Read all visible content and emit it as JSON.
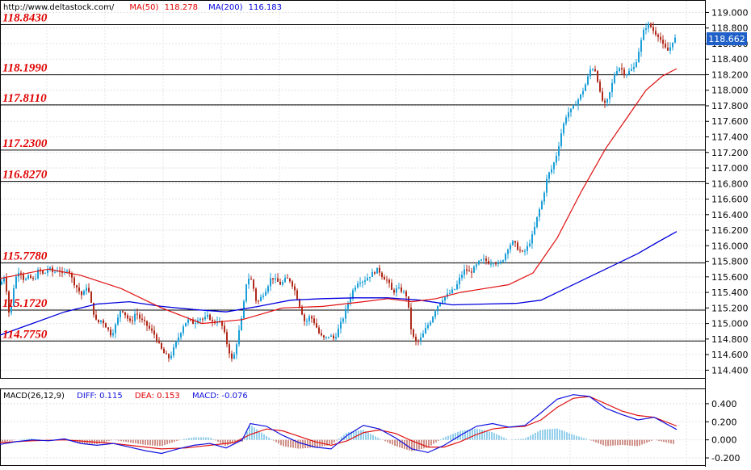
{
  "chart_data": [
    {
      "type": "candlestick",
      "panel": "price",
      "header": {
        "source": "http://www.deltastock.com/",
        "ma50_label": "MA(50)",
        "ma50_value": "118.278",
        "ma200_label": "MA(200)",
        "ma200_value": "116.183"
      },
      "current_price": "118.662",
      "ylim": [
        114.3,
        119.15
      ],
      "y_ticks": [
        "119.000",
        "118.800",
        "118.600",
        "118.400",
        "118.200",
        "118.000",
        "117.800",
        "117.600",
        "117.400",
        "117.200",
        "117.000",
        "116.800",
        "116.600",
        "116.400",
        "116.200",
        "116.000",
        "115.800",
        "115.600",
        "115.400",
        "115.200",
        "115.000",
        "114.800",
        "114.600",
        "114.400"
      ],
      "levels": [
        {
          "label": "118.8430",
          "value": 118.843
        },
        {
          "label": "118.1990",
          "value": 118.199
        },
        {
          "label": "117.8110",
          "value": 117.811
        },
        {
          "label": "117.2300",
          "value": 117.23
        },
        {
          "label": "116.8270",
          "value": 116.827
        },
        {
          "label": "115.7780",
          "value": 115.778
        },
        {
          "label": "115.1720",
          "value": 115.172
        },
        {
          "label": "114.7750",
          "value": 114.775
        }
      ],
      "close_path": [
        [
          0,
          115.5
        ],
        [
          6,
          115.62
        ],
        [
          12,
          115.05
        ],
        [
          18,
          115.55
        ],
        [
          24,
          115.7
        ],
        [
          30,
          115.55
        ],
        [
          36,
          115.6
        ],
        [
          42,
          115.55
        ],
        [
          48,
          115.7
        ],
        [
          54,
          115.62
        ],
        [
          60,
          115.72
        ],
        [
          66,
          115.65
        ],
        [
          72,
          115.7
        ],
        [
          78,
          115.62
        ],
        [
          84,
          115.72
        ],
        [
          90,
          115.55
        ],
        [
          96,
          115.45
        ],
        [
          102,
          115.35
        ],
        [
          108,
          115.5
        ],
        [
          114,
          115.2
        ],
        [
          120,
          115.0
        ],
        [
          126,
          115.05
        ],
        [
          132,
          114.95
        ],
        [
          138,
          114.85
        ],
        [
          144,
          115.0
        ],
        [
          150,
          115.2
        ],
        [
          156,
          115.1
        ],
        [
          162,
          115.0
        ],
        [
          168,
          115.15
        ],
        [
          174,
          115.05
        ],
        [
          180,
          115.0
        ],
        [
          186,
          114.92
        ],
        [
          192,
          114.85
        ],
        [
          198,
          114.7
        ],
        [
          204,
          114.6
        ],
        [
          210,
          114.55
        ],
        [
          216,
          114.7
        ],
        [
          222,
          114.85
        ],
        [
          228,
          115.0
        ],
        [
          234,
          115.05
        ],
        [
          240,
          115.0
        ],
        [
          246,
          115.08
        ],
        [
          252,
          115.05
        ],
        [
          258,
          115.1
        ],
        [
          264,
          115.0
        ],
        [
          270,
          115.05
        ],
        [
          276,
          114.95
        ],
        [
          282,
          114.7
        ],
        [
          288,
          114.5
        ],
        [
          294,
          114.8
        ],
        [
          300,
          115.1
        ],
        [
          306,
          115.6
        ],
        [
          312,
          115.55
        ],
        [
          318,
          115.25
        ],
        [
          324,
          115.35
        ],
        [
          330,
          115.45
        ],
        [
          336,
          115.6
        ],
        [
          342,
          115.55
        ],
        [
          348,
          115.5
        ],
        [
          354,
          115.58
        ],
        [
          360,
          115.55
        ],
        [
          366,
          115.4
        ],
        [
          372,
          115.2
        ],
        [
          378,
          115.0
        ],
        [
          384,
          115.1
        ],
        [
          390,
          115.0
        ],
        [
          396,
          114.85
        ],
        [
          402,
          114.8
        ],
        [
          408,
          114.85
        ],
        [
          414,
          114.8
        ],
        [
          420,
          114.95
        ],
        [
          426,
          115.1
        ],
        [
          432,
          115.3
        ],
        [
          438,
          115.45
        ],
        [
          444,
          115.55
        ],
        [
          450,
          115.55
        ],
        [
          456,
          115.6
        ],
        [
          462,
          115.65
        ],
        [
          468,
          115.7
        ],
        [
          474,
          115.6
        ],
        [
          480,
          115.55
        ],
        [
          486,
          115.4
        ],
        [
          492,
          115.45
        ],
        [
          498,
          115.42
        ],
        [
          504,
          115.35
        ],
        [
          510,
          114.85
        ],
        [
          516,
          114.75
        ],
        [
          522,
          114.82
        ],
        [
          528,
          114.95
        ],
        [
          534,
          115.05
        ],
        [
          540,
          115.2
        ],
        [
          546,
          115.3
        ],
        [
          552,
          115.35
        ],
        [
          558,
          115.4
        ],
        [
          564,
          115.45
        ],
        [
          570,
          115.6
        ],
        [
          576,
          115.7
        ],
        [
          582,
          115.65
        ],
        [
          588,
          115.72
        ],
        [
          594,
          115.8
        ],
        [
          600,
          115.82
        ],
        [
          606,
          115.78
        ],
        [
          612,
          115.8
        ],
        [
          618,
          115.75
        ],
        [
          624,
          115.85
        ],
        [
          630,
          116.0
        ],
        [
          636,
          116.05
        ],
        [
          642,
          115.95
        ],
        [
          648,
          115.9
        ],
        [
          654,
          116.0
        ],
        [
          660,
          116.15
        ],
        [
          666,
          116.4
        ],
        [
          672,
          116.6
        ],
        [
          678,
          116.9
        ],
        [
          684,
          117.0
        ],
        [
          690,
          117.2
        ],
        [
          696,
          117.5
        ],
        [
          702,
          117.7
        ],
        [
          708,
          117.75
        ],
        [
          714,
          117.85
        ],
        [
          720,
          117.95
        ],
        [
          726,
          118.1
        ],
        [
          732,
          118.3
        ],
        [
          738,
          118.25
        ],
        [
          744,
          117.9
        ],
        [
          750,
          117.8
        ],
        [
          756,
          118.0
        ],
        [
          762,
          118.25
        ],
        [
          768,
          118.3
        ],
        [
          774,
          118.2
        ],
        [
          780,
          118.25
        ],
        [
          786,
          118.3
        ],
        [
          792,
          118.55
        ],
        [
          798,
          118.8
        ],
        [
          804,
          118.85
        ],
        [
          810,
          118.75
        ],
        [
          816,
          118.7
        ],
        [
          822,
          118.55
        ],
        [
          828,
          118.5
        ],
        [
          834,
          118.662
        ]
      ],
      "ma50_path": [
        [
          0,
          115.58
        ],
        [
          60,
          115.7
        ],
        [
          100,
          115.62
        ],
        [
          150,
          115.45
        ],
        [
          200,
          115.2
        ],
        [
          250,
          115.0
        ],
        [
          300,
          115.05
        ],
        [
          350,
          115.2
        ],
        [
          400,
          115.22
        ],
        [
          450,
          115.28
        ],
        [
          480,
          115.32
        ],
        [
          510,
          115.28
        ],
        [
          540,
          115.32
        ],
        [
          570,
          115.4
        ],
        [
          600,
          115.45
        ],
        [
          630,
          115.5
        ],
        [
          660,
          115.65
        ],
        [
          690,
          116.1
        ],
        [
          720,
          116.7
        ],
        [
          750,
          117.25
        ],
        [
          780,
          117.7
        ],
        [
          800,
          118.0
        ],
        [
          820,
          118.18
        ],
        [
          838,
          118.278
        ]
      ],
      "ma200_path": [
        [
          0,
          114.85
        ],
        [
          40,
          115.0
        ],
        [
          80,
          115.15
        ],
        [
          120,
          115.25
        ],
        [
          160,
          115.28
        ],
        [
          200,
          115.22
        ],
        [
          240,
          115.18
        ],
        [
          280,
          115.15
        ],
        [
          320,
          115.22
        ],
        [
          360,
          115.3
        ],
        [
          400,
          115.32
        ],
        [
          440,
          115.33
        ],
        [
          480,
          115.33
        ],
        [
          520,
          115.3
        ],
        [
          560,
          115.24
        ],
        [
          600,
          115.25
        ],
        [
          640,
          115.26
        ],
        [
          670,
          115.3
        ],
        [
          700,
          115.45
        ],
        [
          730,
          115.6
        ],
        [
          760,
          115.75
        ],
        [
          790,
          115.9
        ],
        [
          815,
          116.05
        ],
        [
          838,
          116.183
        ]
      ]
    },
    {
      "type": "macd",
      "panel": "indicator",
      "header": {
        "macd_label": "MACD(26,12,9)",
        "diff_label": "DIFF:",
        "diff_value": "0.115",
        "dea_label": "DEA:",
        "dea_value": "0.153",
        "macd_hist_label": "MACD:",
        "macd_hist_value": "-0.076"
      },
      "ylim": [
        -0.28,
        0.56
      ],
      "y_ticks": [
        "0.400",
        "0.200",
        "0.000",
        "-0.200"
      ],
      "diff_path": [
        [
          0,
          -0.05
        ],
        [
          20,
          -0.02
        ],
        [
          40,
          0.0
        ],
        [
          60,
          -0.01
        ],
        [
          80,
          0.01
        ],
        [
          100,
          -0.04
        ],
        [
          120,
          -0.06
        ],
        [
          140,
          -0.04
        ],
        [
          160,
          -0.08
        ],
        [
          180,
          -0.12
        ],
        [
          200,
          -0.15
        ],
        [
          220,
          -0.1
        ],
        [
          240,
          -0.06
        ],
        [
          260,
          -0.04
        ],
        [
          280,
          -0.09
        ],
        [
          300,
          0.0
        ],
        [
          310,
          0.18
        ],
        [
          330,
          0.15
        ],
        [
          350,
          0.05
        ],
        [
          370,
          -0.03
        ],
        [
          390,
          -0.08
        ],
        [
          410,
          -0.1
        ],
        [
          430,
          0.05
        ],
        [
          450,
          0.16
        ],
        [
          470,
          0.12
        ],
        [
          490,
          0.02
        ],
        [
          510,
          -0.1
        ],
        [
          530,
          -0.14
        ],
        [
          550,
          -0.06
        ],
        [
          570,
          0.05
        ],
        [
          590,
          0.15
        ],
        [
          610,
          0.18
        ],
        [
          630,
          0.14
        ],
        [
          650,
          0.16
        ],
        [
          670,
          0.3
        ],
        [
          690,
          0.45
        ],
        [
          710,
          0.5
        ],
        [
          730,
          0.48
        ],
        [
          750,
          0.35
        ],
        [
          770,
          0.28
        ],
        [
          790,
          0.22
        ],
        [
          810,
          0.25
        ],
        [
          838,
          0.115
        ]
      ],
      "dea_path": [
        [
          0,
          -0.03
        ],
        [
          40,
          -0.01
        ],
        [
          80,
          0.0
        ],
        [
          110,
          -0.02
        ],
        [
          140,
          -0.04
        ],
        [
          170,
          -0.07
        ],
        [
          200,
          -0.1
        ],
        [
          230,
          -0.09
        ],
        [
          260,
          -0.06
        ],
        [
          290,
          -0.03
        ],
        [
          310,
          0.06
        ],
        [
          330,
          0.12
        ],
        [
          350,
          0.1
        ],
        [
          370,
          0.04
        ],
        [
          390,
          -0.02
        ],
        [
          410,
          -0.06
        ],
        [
          430,
          -0.01
        ],
        [
          450,
          0.08
        ],
        [
          470,
          0.11
        ],
        [
          490,
          0.07
        ],
        [
          510,
          -0.01
        ],
        [
          530,
          -0.08
        ],
        [
          550,
          -0.08
        ],
        [
          570,
          -0.02
        ],
        [
          590,
          0.06
        ],
        [
          610,
          0.12
        ],
        [
          630,
          0.14
        ],
        [
          650,
          0.15
        ],
        [
          670,
          0.22
        ],
        [
          690,
          0.36
        ],
        [
          710,
          0.46
        ],
        [
          730,
          0.48
        ],
        [
          750,
          0.4
        ],
        [
          770,
          0.32
        ],
        [
          790,
          0.27
        ],
        [
          810,
          0.25
        ],
        [
          838,
          0.153
        ]
      ]
    }
  ]
}
